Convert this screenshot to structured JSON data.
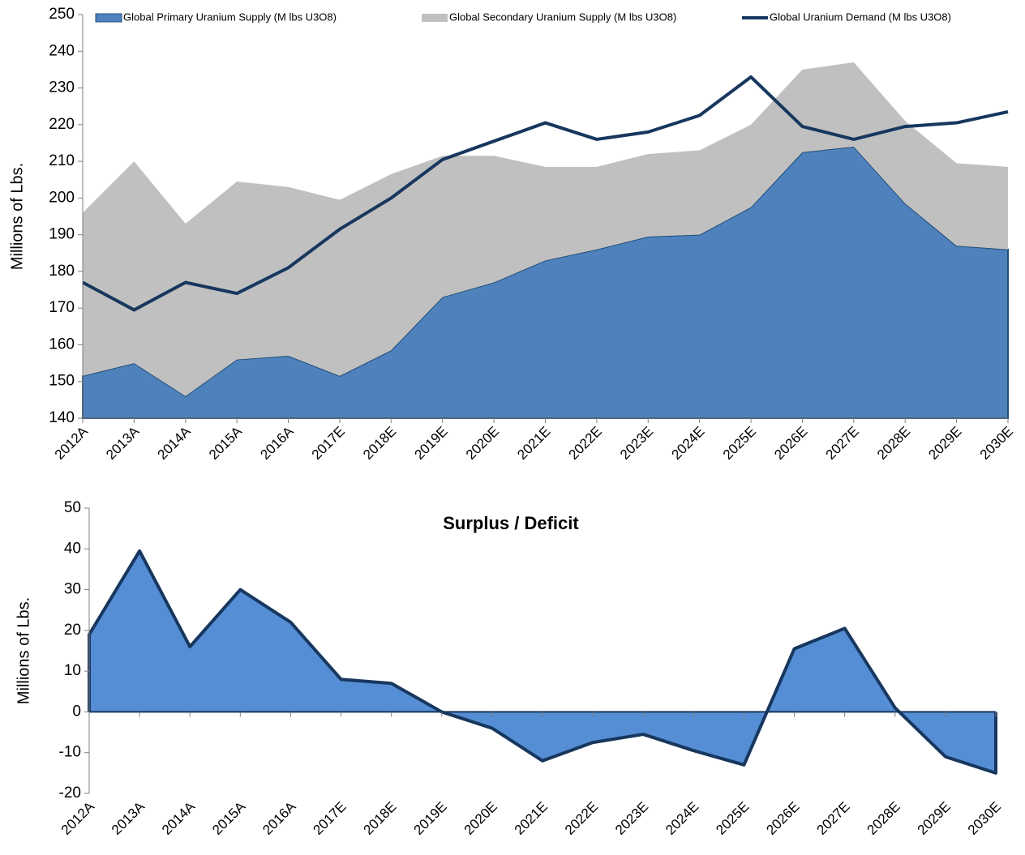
{
  "chart_data": [
    {
      "type": "area",
      "y_label": "Millions of Lbs.",
      "categories": [
        "2012A",
        "2013A",
        "2014A",
        "2015A",
        "2016A",
        "2017E",
        "2018E",
        "2019E",
        "2020E",
        "2021E",
        "2022E",
        "2023E",
        "2024E",
        "2025E",
        "2026E",
        "2027E",
        "2028E",
        "2029E",
        "2030E"
      ],
      "series": [
        {
          "name": "Global Primary Uranium Supply (M lbs U3O8)",
          "kind": "stack",
          "color": "#4f81bd",
          "values": [
            151.5,
            155,
            146,
            156,
            157,
            151.5,
            158.5,
            173,
            177,
            183,
            186,
            189.5,
            190,
            197.5,
            212.5,
            214,
            198.5,
            187,
            186
          ]
        },
        {
          "name": "Global Secondary Uranium Supply (M lbs U3O8)",
          "kind": "stack",
          "color": "#c0c0c0",
          "values": [
            44.5,
            55,
            47,
            48.5,
            46,
            48,
            48,
            38.5,
            34.5,
            25.5,
            22.5,
            22.5,
            23,
            22.5,
            22.5,
            23,
            22.5,
            22.5,
            22.5
          ]
        },
        {
          "name": "Global Uranium Demand (M lbs U3O8)",
          "kind": "line",
          "color": "#17375e",
          "values": [
            177,
            169.5,
            177,
            174,
            181,
            191.5,
            200,
            210.5,
            215.5,
            220.5,
            216,
            218,
            222.5,
            233,
            219.5,
            216,
            219.5,
            220.5,
            223.5
          ]
        }
      ],
      "ylim": [
        140,
        250
      ],
      "yticks": [
        140,
        150,
        160,
        170,
        180,
        190,
        200,
        210,
        220,
        230,
        240,
        250
      ],
      "legend": "top",
      "grid": false
    },
    {
      "type": "area",
      "title": "Surplus / Deficit",
      "y_label": "Millions of Lbs.",
      "categories": [
        "2012A",
        "2013A",
        "2014A",
        "2015A",
        "2016A",
        "2017E",
        "2018E",
        "2019E",
        "2020E",
        "2021E",
        "2022E",
        "2023E",
        "2024E",
        "2025E",
        "2026E",
        "2027E",
        "2028E",
        "2029E",
        "2030E"
      ],
      "series": [
        {
          "kind": "area",
          "color": "#558ed5",
          "line_color": "#17375e",
          "values": [
            19,
            39.5,
            16,
            30,
            22,
            8,
            7,
            0,
            -4,
            -12,
            -7.5,
            -5.5,
            -9.5,
            -13,
            15.5,
            20.5,
            1,
            -11,
            -15
          ]
        }
      ],
      "ylim": [
        -20,
        50
      ],
      "yticks": [
        -20,
        -10,
        0,
        10,
        20,
        30,
        40,
        50
      ],
      "grid": false
    }
  ]
}
